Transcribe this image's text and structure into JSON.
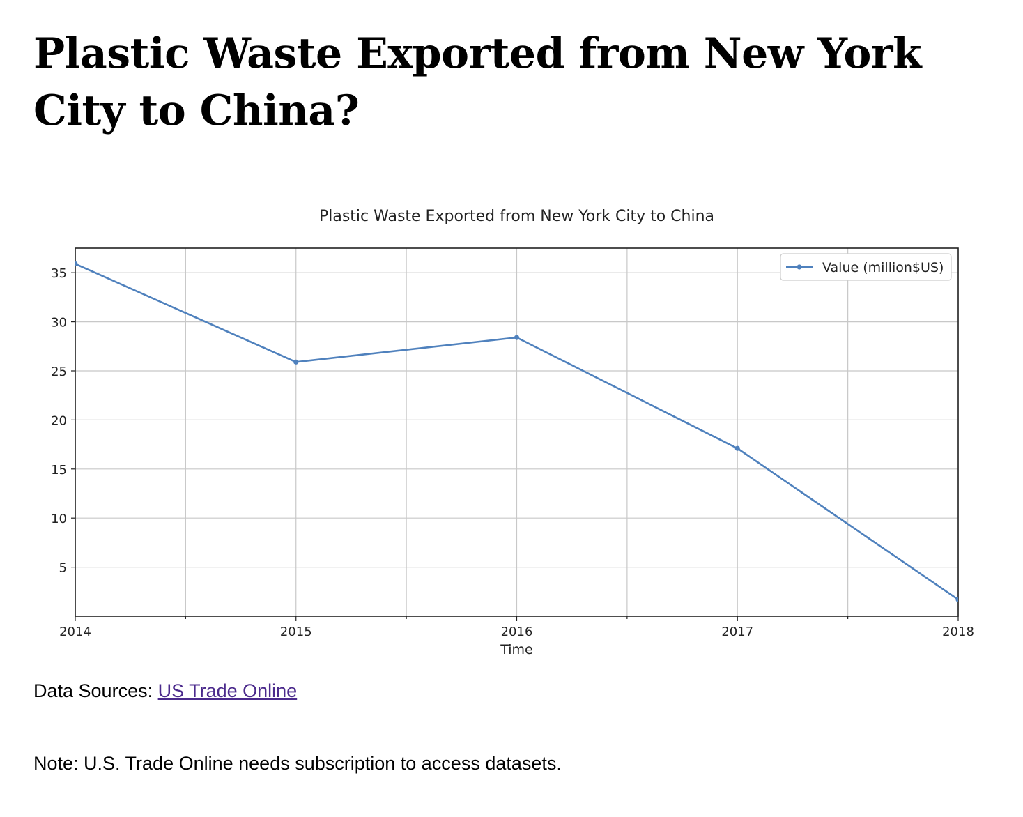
{
  "page": {
    "title": "Plastic Waste Exported from New York City to China?",
    "source_prefix": "Data Sources: ",
    "source_link": "US Trade Online",
    "note": "Note: U.S. Trade Online needs subscription to access datasets."
  },
  "chart_data": {
    "type": "line",
    "title": "Plastic Waste Exported from New York City to China",
    "xlabel": "Time",
    "ylabel": "",
    "x": [
      2014,
      2015,
      2016,
      2017,
      2018
    ],
    "series": [
      {
        "name": "Value (million$US)",
        "values": [
          35.9,
          25.9,
          28.4,
          17.1,
          1.7
        ],
        "color": "#4f81bd"
      }
    ],
    "xlim": [
      2014,
      2018
    ],
    "ylim": [
      0,
      37.5
    ],
    "xticks": [
      2014,
      2015,
      2016,
      2017,
      2018
    ],
    "yticks": [
      5,
      10,
      15,
      20,
      25,
      30,
      35
    ],
    "grid": true,
    "legend_position": "top-right"
  }
}
